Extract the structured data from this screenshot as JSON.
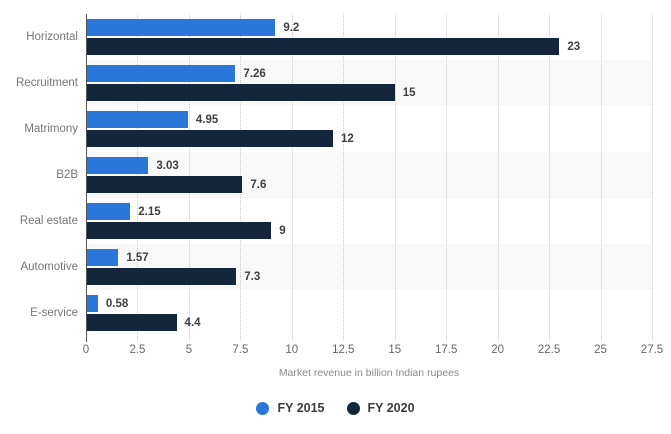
{
  "chart_data": {
    "type": "bar",
    "orientation": "horizontal",
    "title": "",
    "categories": [
      "Horizontal",
      "Recruitment",
      "Matrimony",
      "B2B",
      "Real estate",
      "Automotive",
      "E-service"
    ],
    "series": [
      {
        "name": "FY 2015",
        "color": "#2a76d9",
        "values": [
          9.2,
          7.26,
          4.95,
          3.03,
          2.15,
          1.57,
          0.58
        ],
        "labels": [
          "9.2",
          "7.26",
          "4.95",
          "3.03",
          "2.15",
          "1.57",
          "0.58"
        ]
      },
      {
        "name": "FY 2020",
        "color": "#13263c",
        "values": [
          23,
          15,
          12,
          7.6,
          9,
          7.3,
          4.4
        ],
        "labels": [
          "23",
          "15",
          "12",
          "7.6",
          "9",
          "7.3",
          "4.4"
        ]
      }
    ],
    "xlabel": "Market revenue in billion Indian rupees",
    "ylabel": "",
    "xlim": [
      0,
      27.5
    ],
    "xticks": [
      0,
      2.5,
      5,
      7.5,
      10,
      12.5,
      15,
      17.5,
      20,
      22.5,
      25,
      27.5
    ],
    "xtick_labels": [
      "0",
      "2.5",
      "5",
      "7.5",
      "10",
      "12.5",
      "15",
      "17.5",
      "20",
      "22.5",
      "25",
      "27.5"
    ],
    "grid": "vertical-dotted",
    "legend_position": "bottom-center"
  },
  "colors": {
    "fy2015_blue": "#2a76d9",
    "fy2020_navy": "#13263c",
    "row_stripe": "#f8f8f8",
    "gridline": "#cccccc",
    "axis_line": "#555555",
    "category_label": "#767676",
    "value_label": "#404040",
    "tick_label": "#666666",
    "axis_title": "#8a8a8a"
  }
}
